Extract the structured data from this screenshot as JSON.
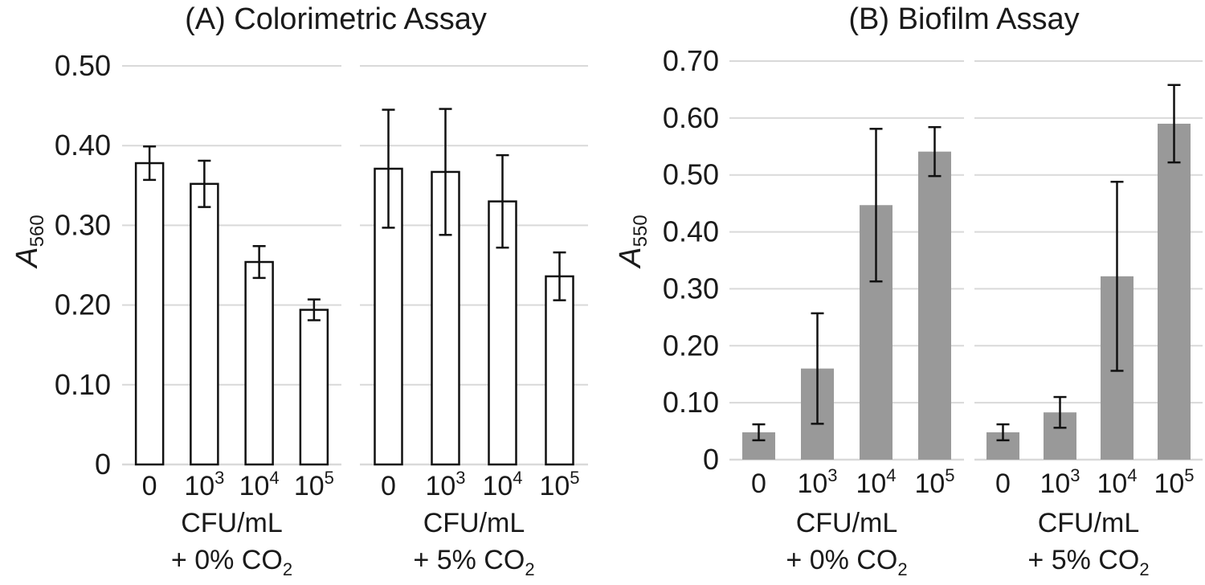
{
  "chart_data": [
    {
      "type": "bar",
      "title": "(A) Colorimetric Assay",
      "ylabel": "A",
      "ylabel_sub": "560",
      "ylim": [
        0,
        0.5
      ],
      "yticks": [
        "0",
        "0.10",
        "0.20",
        "0.30",
        "0.40",
        "0.50"
      ],
      "bar_style": "outline",
      "colors": {
        "bar_fill": "#ffffff",
        "bar_stroke": "#111111",
        "grid": "#d9d9d9"
      },
      "groups": [
        {
          "name": "+ 0% CO2",
          "xlabel_main": "CFU/mL",
          "xlabel_line2": "+ 0% CO",
          "xlabel_sub": "2",
          "categories": [
            {
              "base": "0",
              "exp": ""
            },
            {
              "base": "10",
              "exp": "3"
            },
            {
              "base": "10",
              "exp": "4"
            },
            {
              "base": "10",
              "exp": "5"
            }
          ],
          "values": [
            0.378,
            0.352,
            0.254,
            0.194
          ],
          "errors": [
            0.021,
            0.029,
            0.02,
            0.013
          ]
        },
        {
          "name": "+ 5% CO2",
          "xlabel_main": "CFU/mL",
          "xlabel_line2": "+ 5% CO",
          "xlabel_sub": "2",
          "categories": [
            {
              "base": "0",
              "exp": ""
            },
            {
              "base": "10",
              "exp": "3"
            },
            {
              "base": "10",
              "exp": "4"
            },
            {
              "base": "10",
              "exp": "5"
            }
          ],
          "values": [
            0.371,
            0.367,
            0.33,
            0.236
          ],
          "errors": [
            0.074,
            0.079,
            0.058,
            0.03
          ]
        }
      ]
    },
    {
      "type": "bar",
      "title": "(B) Biofilm Assay",
      "ylabel": "A",
      "ylabel_sub": "550",
      "ylim": [
        0,
        0.7
      ],
      "yticks": [
        "0",
        "0.10",
        "0.20",
        "0.30",
        "0.40",
        "0.50",
        "0.60",
        "0.70"
      ],
      "bar_style": "filled",
      "colors": {
        "bar_fill": "#999999",
        "bar_stroke": "none",
        "grid": "#d9d9d9"
      },
      "groups": [
        {
          "name": "+ 0% CO2",
          "xlabel_main": "CFU/mL",
          "xlabel_line2": "+ 0% CO",
          "xlabel_sub": "2",
          "categories": [
            {
              "base": "0",
              "exp": ""
            },
            {
              "base": "10",
              "exp": "3"
            },
            {
              "base": "10",
              "exp": "4"
            },
            {
              "base": "10",
              "exp": "5"
            }
          ],
          "values": [
            0.048,
            0.16,
            0.447,
            0.541
          ],
          "errors": [
            0.014,
            0.097,
            0.134,
            0.043
          ]
        },
        {
          "name": "+ 5% CO2",
          "xlabel_main": "CFU/mL",
          "xlabel_line2": "+ 5% CO",
          "xlabel_sub": "2",
          "categories": [
            {
              "base": "0",
              "exp": ""
            },
            {
              "base": "10",
              "exp": "3"
            },
            {
              "base": "10",
              "exp": "4"
            },
            {
              "base": "10",
              "exp": "5"
            }
          ],
          "values": [
            0.048,
            0.083,
            0.322,
            0.59
          ],
          "errors": [
            0.014,
            0.027,
            0.166,
            0.068
          ]
        }
      ]
    }
  ]
}
